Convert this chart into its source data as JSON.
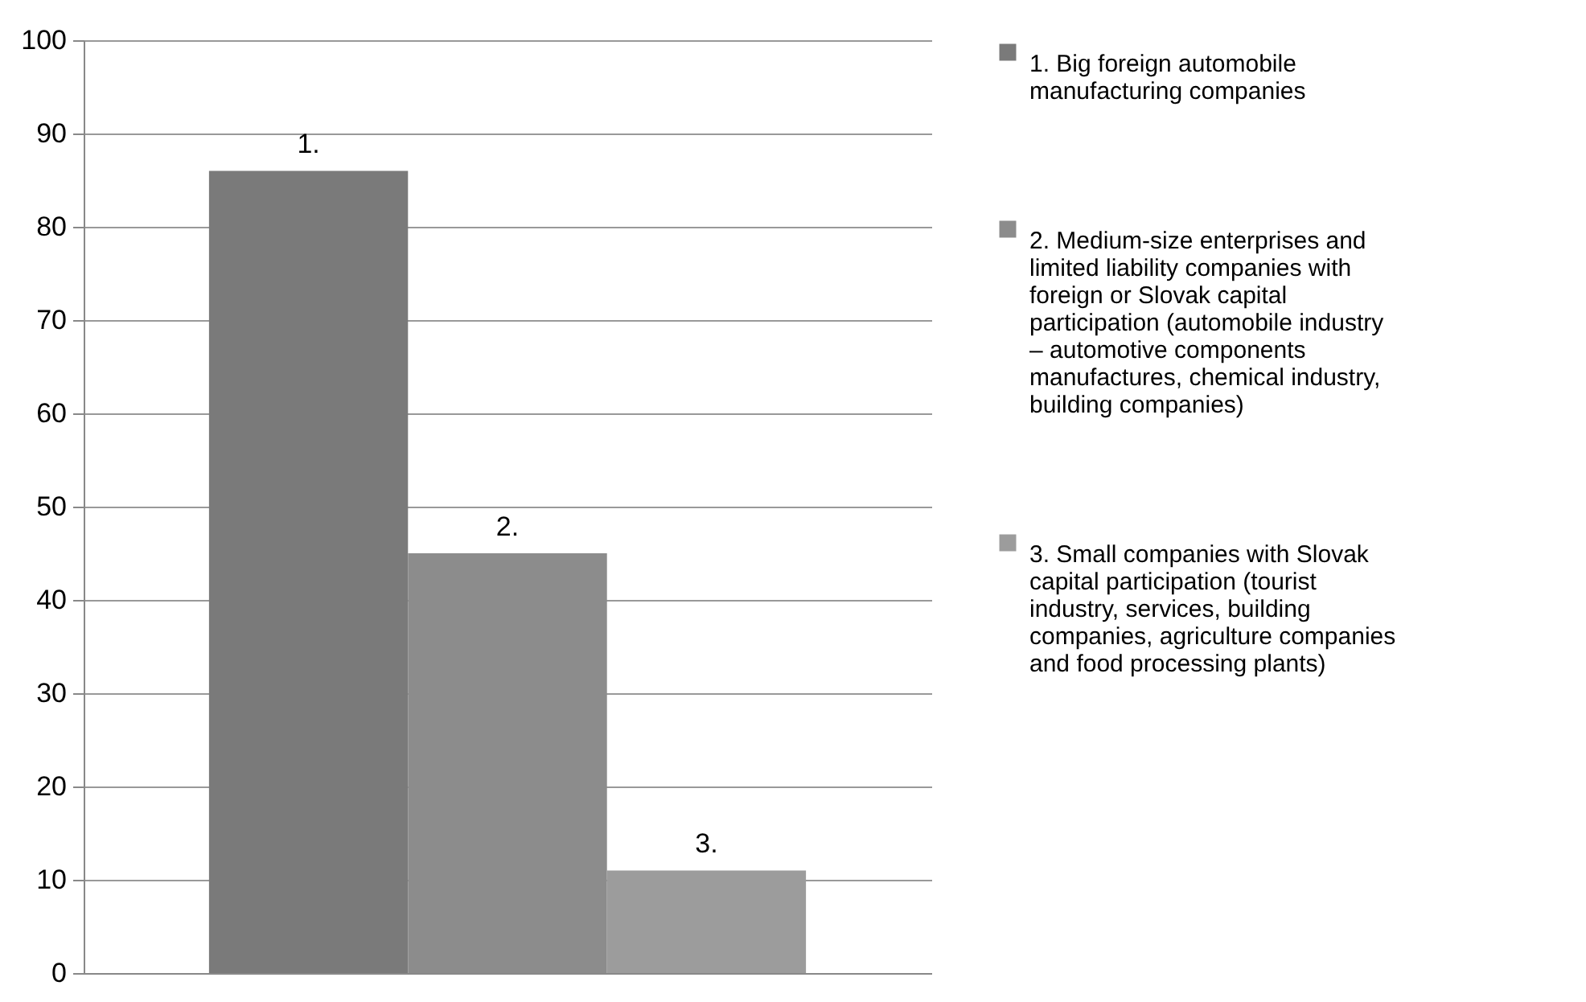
{
  "chart_data": {
    "type": "bar",
    "categories": [
      null
    ],
    "series": [
      {
        "name": "1. Big foreign automobile manufacturing companies",
        "color": "#7a7a7a",
        "values": [
          86
        ]
      },
      {
        "name": "2. Medium-size enterprises and limited liability companies with foreign or Slovak capital participation (automobile industry – automotive components manufactures, chemical industry, building companies)",
        "color": "#8c8c8c",
        "values": [
          45
        ]
      },
      {
        "name": "3. Small companies with Slovak capital participation (tourist industry, services, building companies, agriculture companies and food processing plants)",
        "color": "#9c9c9c",
        "values": [
          11
        ]
      }
    ],
    "ylim": [
      0,
      100
    ],
    "yticks": [
      0,
      10,
      20,
      30,
      40,
      50,
      60,
      70,
      80,
      90,
      100
    ],
    "grid": true,
    "legend": "right",
    "annotations": [
      {
        "text": "1.",
        "y": 86
      },
      {
        "text": "2.",
        "y": 45
      },
      {
        "text": "3.",
        "y": 11
      }
    ]
  }
}
